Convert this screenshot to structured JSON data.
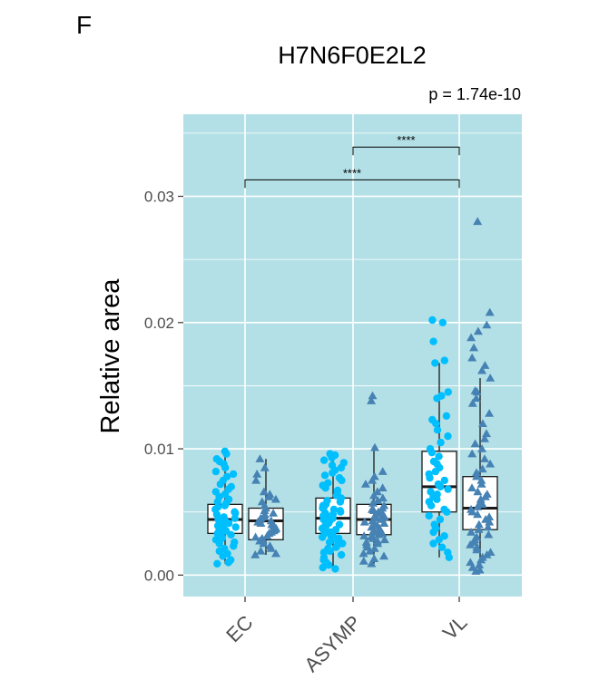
{
  "panel_label": "F",
  "chart_data": {
    "type": "box",
    "title": "H7N6F0E2L2",
    "subtitle": "p = 1.74e-10",
    "xlabel": "",
    "ylabel": "Relative area",
    "ylim": [
      -0.0017,
      0.0365
    ],
    "yticks": [
      0.0,
      0.01,
      0.02,
      0.03
    ],
    "ytick_labels": [
      "0.00",
      "0.01",
      "0.02",
      "0.03"
    ],
    "categories": [
      "EC",
      "ASYMP",
      "VL"
    ],
    "grid": true,
    "background_color": "#b3e0e6",
    "colors": {
      "circle": "#00bfff",
      "triangle": "#4682b4",
      "box_fill": "#ffffff",
      "box_edge": "#1a1a1a"
    },
    "series": [
      {
        "marker": "circle",
        "boxes": [
          {
            "category": "EC",
            "whisker_low": 0.0009,
            "q1": 0.0033,
            "median": 0.0044,
            "q3": 0.0056,
            "whisker_high": 0.0098
          },
          {
            "category": "ASYMP",
            "whisker_low": 0.0005,
            "q1": 0.0033,
            "median": 0.0045,
            "q3": 0.0061,
            "whisker_high": 0.0096
          },
          {
            "category": "VL",
            "whisker_low": 0.0014,
            "q1": 0.005,
            "median": 0.007,
            "q3": 0.0098,
            "whisker_high": 0.0168
          }
        ]
      },
      {
        "marker": "triangle",
        "boxes": [
          {
            "category": "EC",
            "whisker_low": 0.0016,
            "q1": 0.0028,
            "median": 0.0043,
            "q3": 0.0053,
            "whisker_high": 0.0092
          },
          {
            "category": "ASYMP",
            "whisker_low": 0.0009,
            "q1": 0.0032,
            "median": 0.0044,
            "q3": 0.0056,
            "whisker_high": 0.0101
          },
          {
            "category": "VL",
            "whisker_low": 0.0003,
            "q1": 0.0036,
            "median": 0.0053,
            "q3": 0.0078,
            "whisker_high": 0.0156
          }
        ]
      }
    ],
    "points": {
      "EC": {
        "circle": [
          0.0098,
          0.0096,
          0.0092,
          0.009,
          0.0088,
          0.0085,
          0.0082,
          0.008,
          0.0078,
          0.0075,
          0.0072,
          0.007,
          0.0068,
          0.0066,
          0.0064,
          0.0062,
          0.006,
          0.0058,
          0.0057,
          0.0055,
          0.0054,
          0.0052,
          0.005,
          0.0049,
          0.0048,
          0.0046,
          0.0045,
          0.0044,
          0.0043,
          0.0042,
          0.0041,
          0.004,
          0.0039,
          0.0038,
          0.0037,
          0.0036,
          0.0035,
          0.0034,
          0.0033,
          0.0032,
          0.003,
          0.0029,
          0.0028,
          0.0026,
          0.0025,
          0.0023,
          0.0021,
          0.0019,
          0.0017,
          0.0015,
          0.0012,
          0.001,
          0.0009
        ],
        "triangle": [
          0.0092,
          0.0085,
          0.008,
          0.0075,
          0.0066,
          0.0064,
          0.0062,
          0.006,
          0.0058,
          0.0055,
          0.0053,
          0.0051,
          0.0049,
          0.0048,
          0.0046,
          0.0045,
          0.0044,
          0.0043,
          0.0042,
          0.0041,
          0.004,
          0.0039,
          0.0037,
          0.0036,
          0.0035,
          0.0034,
          0.0033,
          0.0031,
          0.003,
          0.0029,
          0.0028,
          0.0027,
          0.0025,
          0.0023,
          0.0021,
          0.0019,
          0.0017,
          0.0016
        ]
      },
      "ASYMP": {
        "circle": [
          0.0096,
          0.0095,
          0.0093,
          0.0091,
          0.0089,
          0.0087,
          0.0085,
          0.0083,
          0.0081,
          0.0079,
          0.0077,
          0.0075,
          0.0073,
          0.0071,
          0.0069,
          0.0067,
          0.0065,
          0.0063,
          0.0061,
          0.0059,
          0.0058,
          0.0056,
          0.0055,
          0.0054,
          0.0053,
          0.0052,
          0.0051,
          0.005,
          0.0049,
          0.0048,
          0.0047,
          0.0046,
          0.0045,
          0.0044,
          0.0043,
          0.0042,
          0.0041,
          0.004,
          0.0039,
          0.0038,
          0.0037,
          0.0036,
          0.0035,
          0.0034,
          0.0033,
          0.0032,
          0.0031,
          0.003,
          0.0029,
          0.0028,
          0.0027,
          0.0026,
          0.0025,
          0.0024,
          0.0022,
          0.0021,
          0.0019,
          0.0018,
          0.0016,
          0.0014,
          0.0012,
          0.001,
          0.0008,
          0.0006,
          0.0005
        ],
        "triangle": [
          0.0142,
          0.0138,
          0.0101,
          0.0082,
          0.0078,
          0.0075,
          0.0072,
          0.0069,
          0.0066,
          0.0063,
          0.0061,
          0.0059,
          0.0057,
          0.0055,
          0.0053,
          0.0052,
          0.0051,
          0.005,
          0.0049,
          0.0048,
          0.0047,
          0.0046,
          0.0045,
          0.0044,
          0.0043,
          0.0042,
          0.0041,
          0.004,
          0.0039,
          0.0038,
          0.0037,
          0.0036,
          0.0035,
          0.0034,
          0.0033,
          0.0032,
          0.0031,
          0.003,
          0.0029,
          0.0028,
          0.0027,
          0.0026,
          0.0025,
          0.0024,
          0.0022,
          0.0021,
          0.0019,
          0.0017,
          0.0015,
          0.0013,
          0.0011,
          0.0009
        ]
      },
      "VL": {
        "circle": [
          0.0202,
          0.02,
          0.0185,
          0.017,
          0.0168,
          0.0145,
          0.0142,
          0.014,
          0.0126,
          0.0123,
          0.012,
          0.0115,
          0.011,
          0.0105,
          0.01,
          0.0097,
          0.0094,
          0.009,
          0.0088,
          0.0085,
          0.0082,
          0.008,
          0.0077,
          0.0075,
          0.0072,
          0.007,
          0.0068,
          0.0066,
          0.0064,
          0.0062,
          0.006,
          0.0058,
          0.0055,
          0.0052,
          0.005,
          0.0047,
          0.0044,
          0.004,
          0.0037,
          0.0034,
          0.0031,
          0.0028,
          0.0025,
          0.0022,
          0.0018,
          0.0014
        ],
        "triangle": [
          0.028,
          0.0208,
          0.0198,
          0.0193,
          0.0188,
          0.018,
          0.0172,
          0.0166,
          0.0162,
          0.0156,
          0.0146,
          0.0145,
          0.014,
          0.0136,
          0.0128,
          0.012,
          0.0112,
          0.0108,
          0.0104,
          0.01,
          0.0096,
          0.0092,
          0.0088,
          0.0084,
          0.0081,
          0.0078,
          0.0075,
          0.0072,
          0.0069,
          0.0066,
          0.0064,
          0.0062,
          0.006,
          0.0058,
          0.0056,
          0.0054,
          0.0052,
          0.005,
          0.0048,
          0.0046,
          0.0044,
          0.0042,
          0.004,
          0.0038,
          0.0036,
          0.0034,
          0.0032,
          0.003,
          0.0028,
          0.0026,
          0.0024,
          0.0022,
          0.002,
          0.0018,
          0.0016,
          0.0014,
          0.0012,
          0.001,
          0.0008,
          0.0006,
          0.0004,
          0.0003
        ]
      }
    },
    "comparisons": [
      {
        "from": "ASYMP",
        "to": "VL",
        "y": 0.0339,
        "label": "****"
      },
      {
        "from": "EC",
        "to": "VL",
        "y": 0.0313,
        "label": "****"
      }
    ]
  }
}
